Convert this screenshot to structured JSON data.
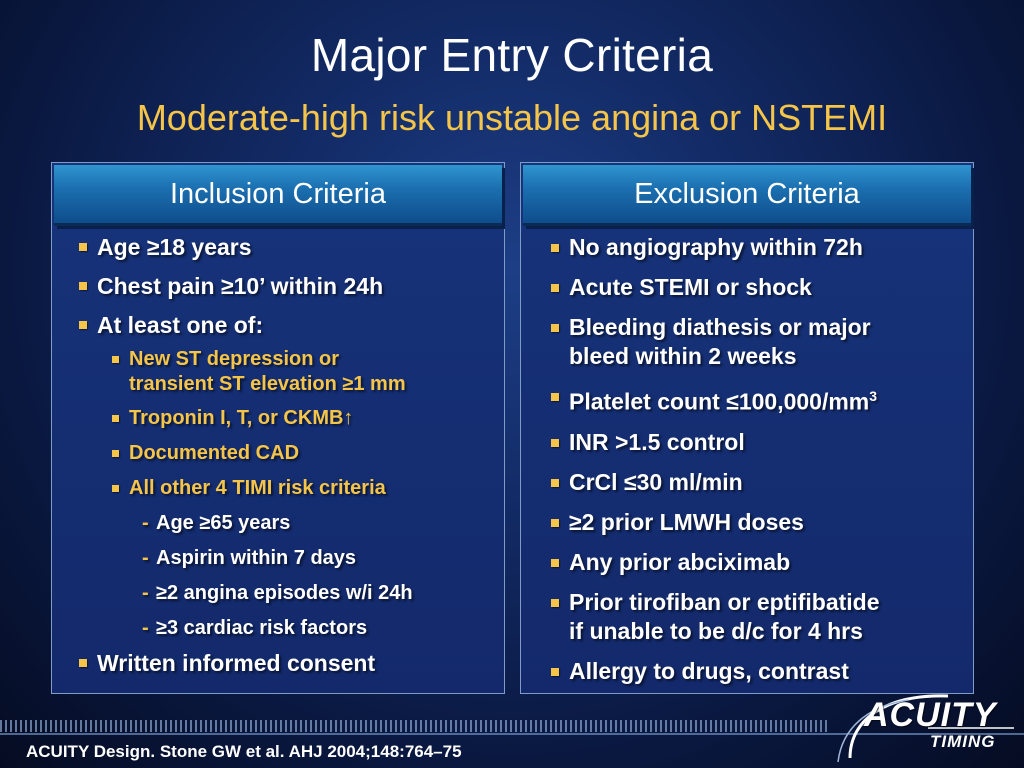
{
  "slide": {
    "title": "Major Entry Criteria",
    "subtitle": "Moderate-high risk unstable angina or NSTEMI"
  },
  "inclusion": {
    "header": "Inclusion Criteria",
    "items": [
      {
        "level": 1,
        "text": "Age ≥18 years"
      },
      {
        "level": 1,
        "text": "Chest pain ≥10’ within 24h"
      },
      {
        "level": 1,
        "text": "At least one of:"
      },
      {
        "level": 2,
        "line1": "New ST depression or",
        "line2": "transient ST elevation ≥1 mm"
      },
      {
        "level": 2,
        "text": "Troponin I, T, or CKMB↑"
      },
      {
        "level": 2,
        "text": "Documented CAD"
      },
      {
        "level": 2,
        "text": "All other 4 TIMI risk criteria"
      },
      {
        "level": 3,
        "text": "Age ≥65 years"
      },
      {
        "level": 3,
        "text": "Aspirin within 7 days"
      },
      {
        "level": 3,
        "text": "≥2 angina episodes w/i 24h"
      },
      {
        "level": 3,
        "text": "≥3 cardiac risk factors"
      },
      {
        "level": 1,
        "text": "Written informed consent"
      }
    ]
  },
  "exclusion": {
    "header": "Exclusion Criteria",
    "items": [
      {
        "text": "No angiography within 72h"
      },
      {
        "text": "Acute STEMI or shock"
      },
      {
        "line1": "Bleeding diathesis or major",
        "line2": "bleed within 2 weeks"
      },
      {
        "text": "Platelet count ≤100,000/mm",
        "sup": "3"
      },
      {
        "text": "INR >1.5 control"
      },
      {
        "text": "CrCl ≤30 ml/min"
      },
      {
        "text": "≥2 prior LMWH doses"
      },
      {
        "text": "Any prior abciximab"
      },
      {
        "line1": "Prior tirofiban or eptifibatide",
        "line2": "if unable to be d/c for 4 hrs"
      },
      {
        "text": "Allergy to drugs, contrast"
      }
    ]
  },
  "footer": {
    "citation": "ACUITY Design. Stone GW et al. AHJ 2004;148:764–75",
    "logo_word": "ACUITY",
    "logo_sub": "TIMING"
  },
  "colors": {
    "accent": "#f5c54a",
    "header_blue": "#1b6fb0",
    "background": "#122a64"
  }
}
